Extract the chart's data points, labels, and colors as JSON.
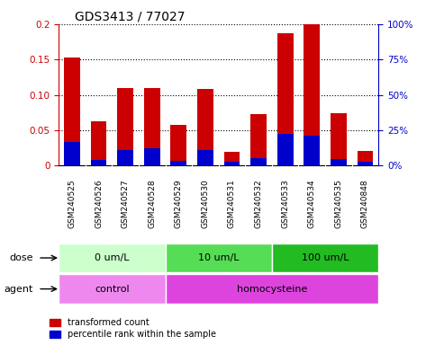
{
  "title": "GDS3413 / 77027",
  "samples": [
    "GSM240525",
    "GSM240526",
    "GSM240527",
    "GSM240528",
    "GSM240529",
    "GSM240530",
    "GSM240531",
    "GSM240532",
    "GSM240533",
    "GSM240534",
    "GSM240535",
    "GSM240848"
  ],
  "red_values": [
    0.153,
    0.063,
    0.11,
    0.11,
    0.058,
    0.108,
    0.02,
    0.073,
    0.187,
    0.2,
    0.074,
    0.021
  ],
  "blue_values": [
    0.034,
    0.008,
    0.022,
    0.025,
    0.007,
    0.022,
    0.005,
    0.011,
    0.045,
    0.042,
    0.009,
    0.006
  ],
  "ylim_left": [
    0,
    0.2
  ],
  "ylim_right": [
    0,
    100
  ],
  "yticks_left": [
    0,
    0.05,
    0.1,
    0.15,
    0.2
  ],
  "ytick_labels_left": [
    "0",
    "0.05",
    "0.10",
    "0.15",
    "0.2"
  ],
  "yticks_right": [
    0,
    25,
    50,
    75,
    100
  ],
  "ytick_labels_right": [
    "0%",
    "25%",
    "50%",
    "75%",
    "100%"
  ],
  "bar_color_red": "#CC0000",
  "bar_color_blue": "#0000CC",
  "dose_groups": [
    {
      "label": "0 um/L",
      "start": 0,
      "end": 4,
      "color": "#ccffcc"
    },
    {
      "label": "10 um/L",
      "start": 4,
      "end": 8,
      "color": "#55dd55"
    },
    {
      "label": "100 um/L",
      "start": 8,
      "end": 12,
      "color": "#22bb22"
    }
  ],
  "agent_groups": [
    {
      "label": "control",
      "start": 0,
      "end": 4,
      "color": "#ee88ee"
    },
    {
      "label": "homocysteine",
      "start": 4,
      "end": 12,
      "color": "#dd44dd"
    }
  ],
  "dose_label": "dose",
  "agent_label": "agent",
  "legend_red": "transformed count",
  "legend_blue": "percentile rank within the sample",
  "left_axis_color": "#CC0000",
  "right_axis_color": "#0000CC",
  "title_fontsize": 10,
  "bar_width": 0.6,
  "sample_bg_color": "#c8c8c8",
  "fig_bg_color": "#ffffff"
}
